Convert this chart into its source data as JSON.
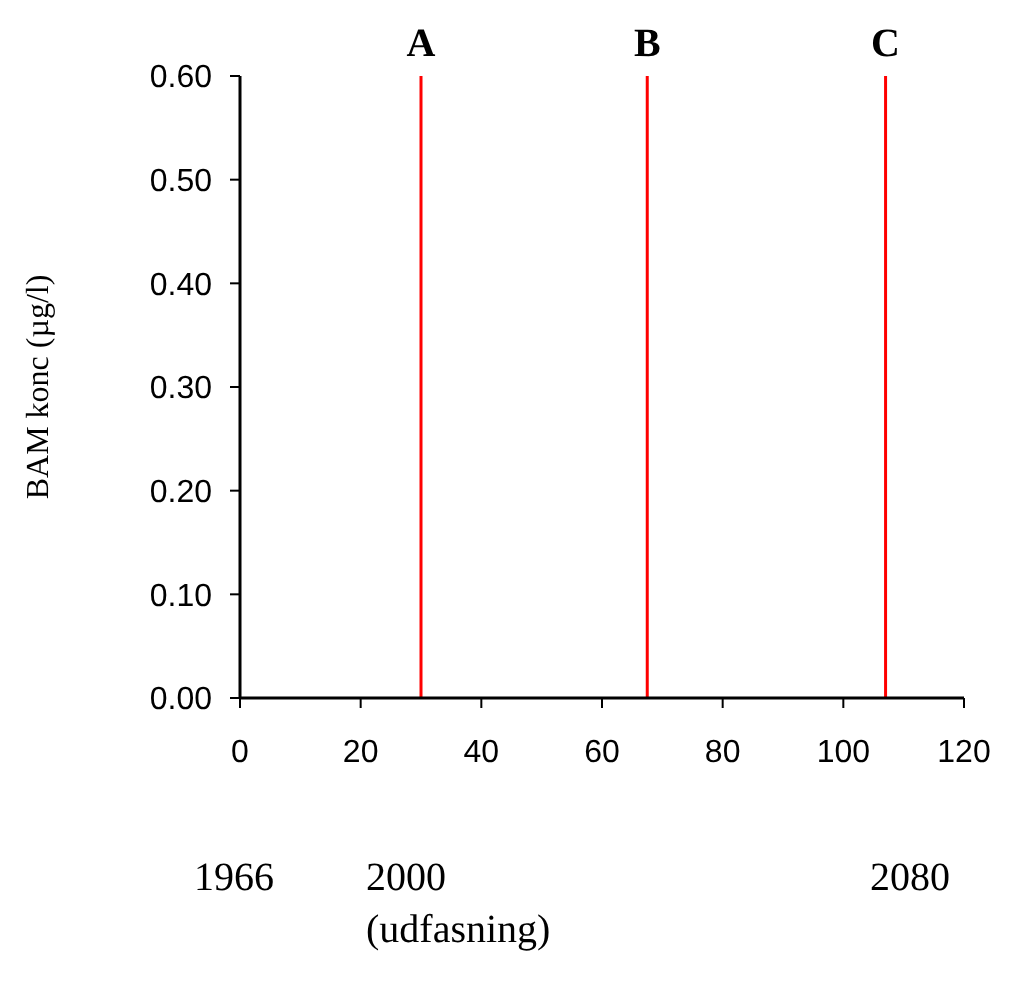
{
  "chart_data": {
    "type": "line",
    "ylabel": "BAM konc (µg/l)",
    "xlim": [
      0,
      120
    ],
    "xticks": [
      0,
      20,
      40,
      60,
      80,
      100,
      120
    ],
    "ylim": [
      0,
      0.6
    ],
    "yticks": [
      {
        "value": 0,
        "label": "0.00"
      },
      {
        "value": 0.1,
        "label": "0.10"
      },
      {
        "value": 0.2,
        "label": "0.20"
      },
      {
        "value": 0.3,
        "label": "0.30"
      },
      {
        "value": 0.4,
        "label": "0.40"
      },
      {
        "value": 0.5,
        "label": "0.50"
      },
      {
        "value": 0.6,
        "label": "0.60"
      }
    ],
    "ref_lines": [
      {
        "axis": "x",
        "value": 30,
        "label": "A",
        "color": "#ff0000"
      },
      {
        "axis": "x",
        "value": 67.5,
        "label": "B",
        "color": "#ff0000"
      },
      {
        "axis": "x",
        "value": 107,
        "label": "C",
        "color": "#ff0000"
      }
    ],
    "annotations": [
      "1966",
      "2000\n(udfasning)",
      "2080"
    ],
    "grid": false
  }
}
